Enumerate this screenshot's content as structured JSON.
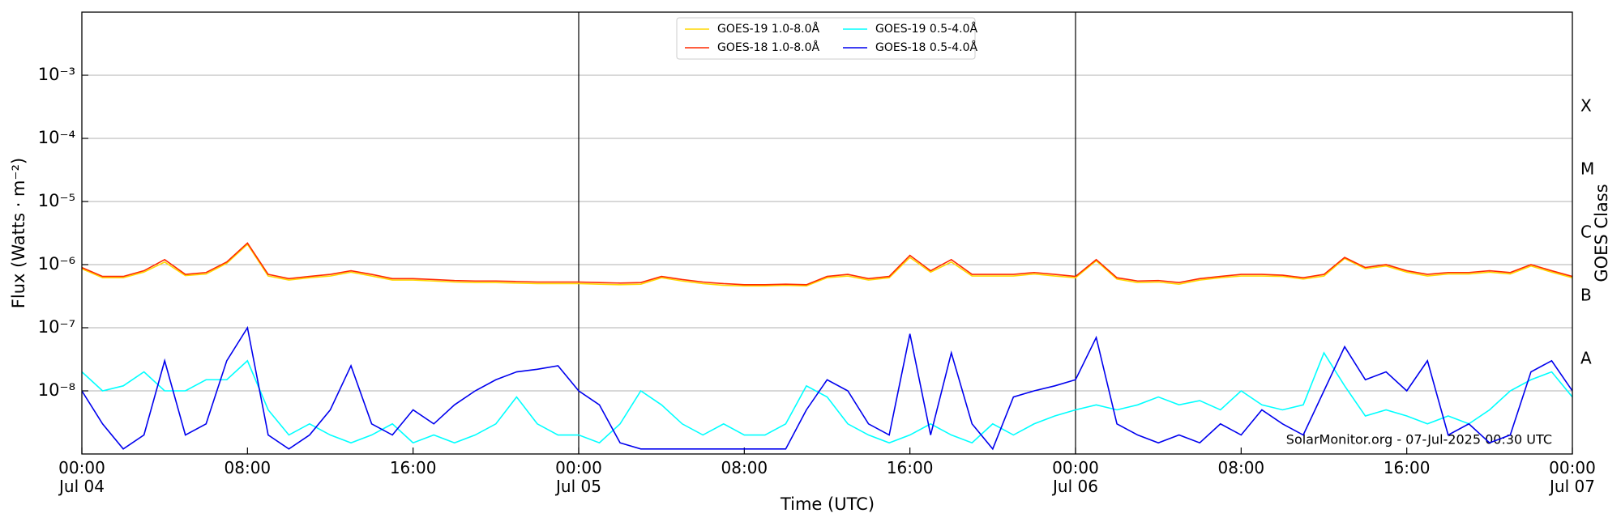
{
  "chart_data": {
    "type": "line",
    "xlabel": "Time (UTC)",
    "ylabel": "Flux (Watts · m⁻²)",
    "y2label": "GOES Class",
    "annotation": "SolarMonitor.org - 07-Jul-2025 00:30 UTC",
    "yscale": "log",
    "grid": true,
    "legend": "upper center",
    "xlim": [
      0,
      72
    ],
    "xticks": [
      {
        "value": 0,
        "label": "00:00\nJul 04"
      },
      {
        "value": 8,
        "label": "08:00"
      },
      {
        "value": 16,
        "label": "16:00"
      },
      {
        "value": 24,
        "label": "00:00\nJul 05"
      },
      {
        "value": 32,
        "label": "08:00"
      },
      {
        "value": 40,
        "label": "16:00"
      },
      {
        "value": 48,
        "label": "00:00\nJul 06"
      },
      {
        "value": 56,
        "label": "08:00"
      },
      {
        "value": 64,
        "label": "16:00"
      },
      {
        "value": 72,
        "label": "00:00\nJul 07"
      }
    ],
    "vlines": [
      24,
      48
    ],
    "ylim": [
      1e-09,
      0.01
    ],
    "yticks": [
      {
        "value": 1e-08,
        "label": "10⁻⁸"
      },
      {
        "value": 1e-07,
        "label": "10⁻⁷"
      },
      {
        "value": 1e-06,
        "label": "10⁻⁶"
      },
      {
        "value": 1e-05,
        "label": "10⁻⁵"
      },
      {
        "value": 0.0001,
        "label": "10⁻⁴"
      },
      {
        "value": 0.001,
        "label": "10⁻³"
      }
    ],
    "y2lim": [
      1e-09,
      0.01
    ],
    "y2ticks": [
      {
        "value": 3.16e-08,
        "label": "A"
      },
      {
        "value": 3.16e-07,
        "label": "B"
      },
      {
        "value": 3.16e-06,
        "label": "C"
      },
      {
        "value": 3.16e-05,
        "label": "M"
      },
      {
        "value": 0.000316,
        "label": "X"
      }
    ],
    "x": [
      0,
      1,
      2,
      3,
      4,
      5,
      6,
      7,
      8,
      9,
      10,
      11,
      12,
      13,
      14,
      15,
      16,
      17,
      18,
      19,
      20,
      21,
      22,
      23,
      24,
      25,
      26,
      27,
      28,
      29,
      30,
      31,
      32,
      33,
      34,
      35,
      36,
      37,
      38,
      39,
      40,
      41,
      42,
      43,
      44,
      45,
      46,
      47,
      48,
      49,
      50,
      51,
      52,
      53,
      54,
      55,
      56,
      57,
      58,
      59,
      60,
      61,
      62,
      63,
      64,
      65,
      66,
      67,
      68,
      69,
      70,
      71,
      72
    ],
    "series": [
      {
        "name": "GOES-19 1.0-8.0Å",
        "color": "#ffd700",
        "values": [
          8.6e-07,
          6.2e-07,
          6.2e-07,
          7.6e-07,
          1.1e-06,
          6.7e-07,
          7.1e-07,
          1.05e-06,
          2.1e-06,
          6.6e-07,
          5.7e-07,
          6.2e-07,
          6.6e-07,
          7.6e-07,
          6.6e-07,
          5.7e-07,
          5.7e-07,
          5.5e-07,
          5.3e-07,
          5.2e-07,
          5.2e-07,
          5.1e-07,
          5e-07,
          5e-07,
          5e-07,
          4.9e-07,
          4.8e-07,
          4.9e-07,
          6.2e-07,
          5.5e-07,
          5e-07,
          4.7e-07,
          4.6e-07,
          4.6e-07,
          4.7e-07,
          4.6e-07,
          6.2e-07,
          6.6e-07,
          5.7e-07,
          6.2e-07,
          1.3e-06,
          7.6e-07,
          1.1e-06,
          6.6e-07,
          6.6e-07,
          6.6e-07,
          7.1e-07,
          6.6e-07,
          6.2e-07,
          1.15e-06,
          5.9e-07,
          5.2e-07,
          5.3e-07,
          4.9e-07,
          5.7e-07,
          6.2e-07,
          6.6e-07,
          6.6e-07,
          6.5e-07,
          5.9e-07,
          6.6e-07,
          1.25e-06,
          8.6e-07,
          9.5e-07,
          7.6e-07,
          6.6e-07,
          7.1e-07,
          7.1e-07,
          7.6e-07,
          7.1e-07,
          9.5e-07,
          7.6e-07,
          6.2e-07
        ]
      },
      {
        "name": "GOES-18 1.0-8.0Å",
        "color": "#ff2a00",
        "values": [
          9e-07,
          6.5e-07,
          6.5e-07,
          8e-07,
          1.2e-06,
          7e-07,
          7.5e-07,
          1.1e-06,
          2.2e-06,
          7e-07,
          6e-07,
          6.5e-07,
          7e-07,
          8e-07,
          7e-07,
          6e-07,
          6e-07,
          5.8e-07,
          5.6e-07,
          5.5e-07,
          5.5e-07,
          5.4e-07,
          5.3e-07,
          5.3e-07,
          5.3e-07,
          5.2e-07,
          5.1e-07,
          5.2e-07,
          6.5e-07,
          5.8e-07,
          5.3e-07,
          5e-07,
          4.8e-07,
          4.8e-07,
          4.9e-07,
          4.8e-07,
          6.5e-07,
          7e-07,
          6e-07,
          6.5e-07,
          1.4e-06,
          8e-07,
          1.2e-06,
          7e-07,
          7e-07,
          7e-07,
          7.5e-07,
          7e-07,
          6.5e-07,
          1.2e-06,
          6.2e-07,
          5.5e-07,
          5.6e-07,
          5.2e-07,
          6e-07,
          6.5e-07,
          7e-07,
          7e-07,
          6.8e-07,
          6.2e-07,
          7e-07,
          1.3e-06,
          9e-07,
          1e-06,
          8e-07,
          7e-07,
          7.5e-07,
          7.5e-07,
          8e-07,
          7.5e-07,
          1e-06,
          8e-07,
          6.5e-07
        ]
      },
      {
        "name": "GOES-19 0.5-4.0Å",
        "color": "#00ffff",
        "values": [
          2e-08,
          1e-08,
          1.2e-08,
          2e-08,
          1e-08,
          1e-08,
          1.5e-08,
          1.5e-08,
          3e-08,
          5e-09,
          2e-09,
          3e-09,
          2e-09,
          1.5e-09,
          2e-09,
          3e-09,
          1.5e-09,
          2e-09,
          1.5e-09,
          2e-09,
          3e-09,
          8e-09,
          3e-09,
          2e-09,
          2e-09,
          1.5e-09,
          3e-09,
          1e-08,
          6e-09,
          3e-09,
          2e-09,
          3e-09,
          2e-09,
          2e-09,
          3e-09,
          1.2e-08,
          8e-09,
          3e-09,
          2e-09,
          1.5e-09,
          2e-09,
          3e-09,
          2e-09,
          1.5e-09,
          3e-09,
          2e-09,
          3e-09,
          4e-09,
          5e-09,
          6e-09,
          5e-09,
          6e-09,
          8e-09,
          6e-09,
          7e-09,
          5e-09,
          1e-08,
          6e-09,
          5e-09,
          6e-09,
          4e-08,
          1.2e-08,
          4e-09,
          5e-09,
          4e-09,
          3e-09,
          4e-09,
          3e-09,
          5e-09,
          1e-08,
          1.5e-08,
          2e-08,
          8e-09
        ]
      },
      {
        "name": "GOES-18 0.5-4.0Å",
        "color": "#0000ee",
        "values": [
          1e-08,
          3e-09,
          1.2e-09,
          2e-09,
          3e-08,
          2e-09,
          3e-09,
          3e-08,
          1e-07,
          2e-09,
          1.2e-09,
          2e-09,
          5e-09,
          2.5e-08,
          3e-09,
          2e-09,
          5e-09,
          3e-09,
          6e-09,
          1e-08,
          1.5e-08,
          2e-08,
          2.2e-08,
          2.5e-08,
          1e-08,
          6e-09,
          1.5e-09,
          1.2e-09,
          1.2e-09,
          1.2e-09,
          1.2e-09,
          1.2e-09,
          1.2e-09,
          1.2e-09,
          1.2e-09,
          5e-09,
          1.5e-08,
          1e-08,
          3e-09,
          2e-09,
          8e-08,
          2e-09,
          4e-08,
          3e-09,
          1.2e-09,
          8e-09,
          1e-08,
          1.2e-08,
          1.5e-08,
          7e-08,
          3e-09,
          2e-09,
          1.5e-09,
          2e-09,
          1.5e-09,
          3e-09,
          2e-09,
          5e-09,
          3e-09,
          2e-09,
          1e-08,
          5e-08,
          1.5e-08,
          2e-08,
          1e-08,
          3e-08,
          2e-09,
          3e-09,
          1.5e-09,
          2e-09,
          2e-08,
          3e-08,
          1e-08
        ]
      }
    ]
  }
}
